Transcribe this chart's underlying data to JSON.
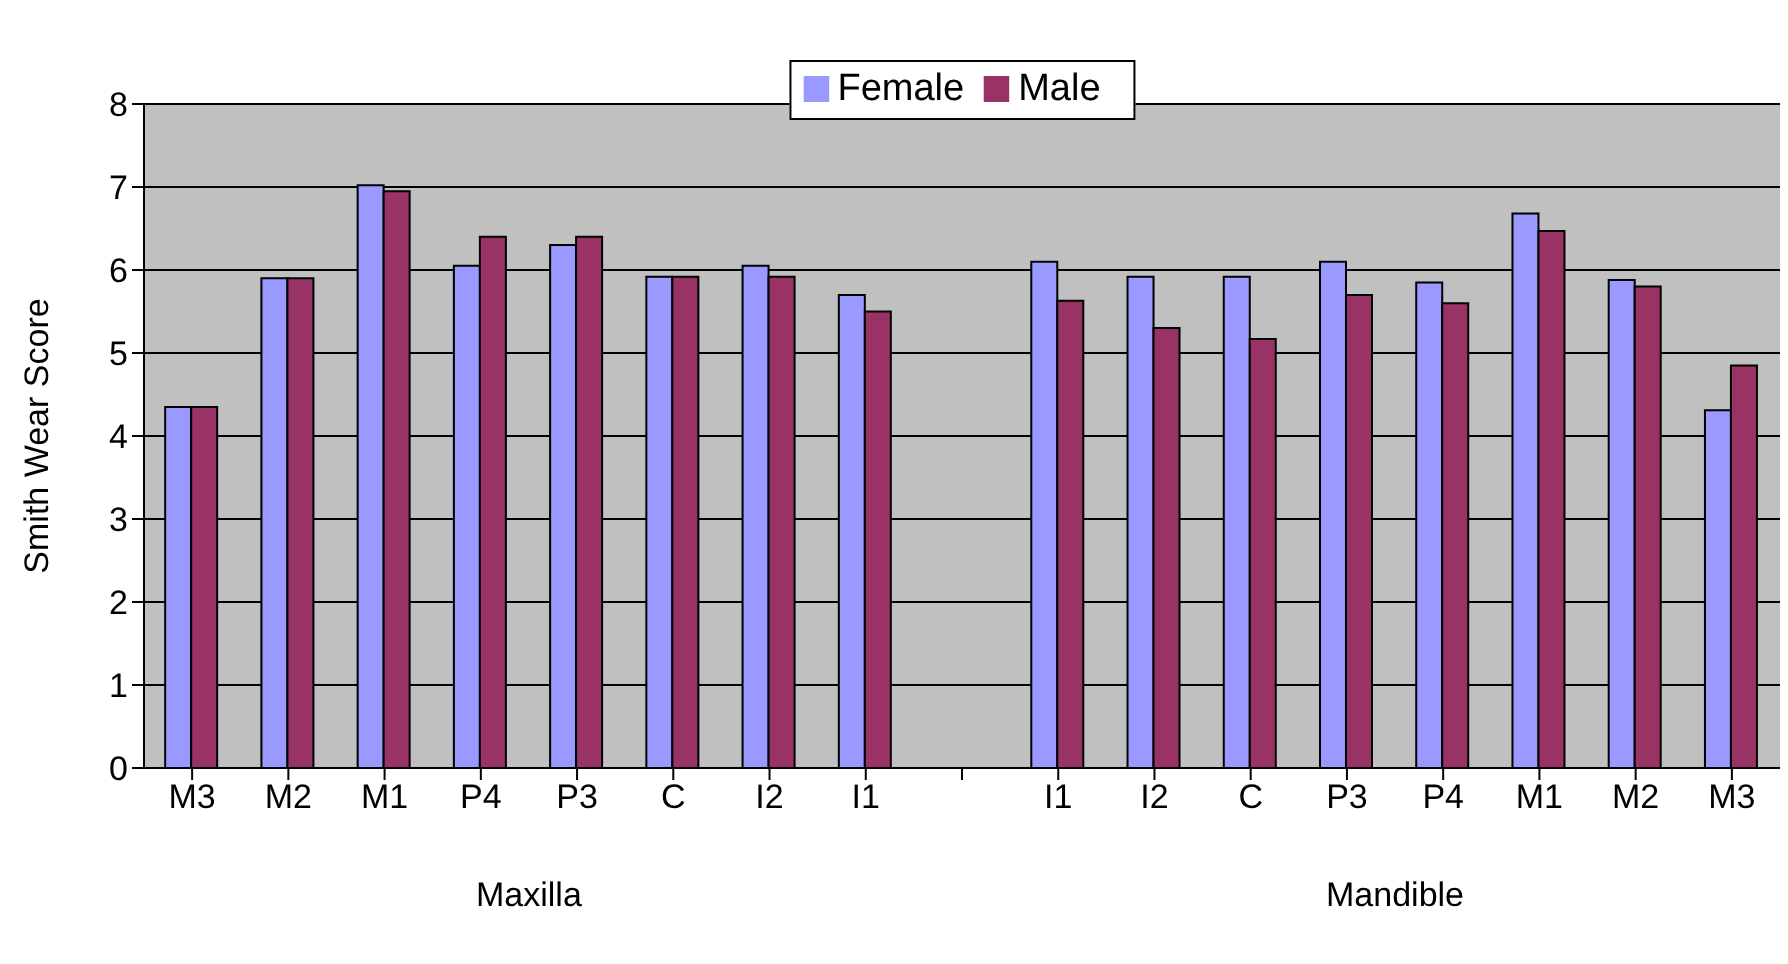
{
  "chart_data": {
    "type": "bar",
    "ylabel": "Smith Wear Score",
    "categories": [
      "M3",
      "M2",
      "M1",
      "P4",
      "P3",
      "C",
      "I2",
      "I1",
      null,
      "I1",
      "I2",
      "C",
      "P3",
      "P4",
      "M1",
      "M2",
      "M3"
    ],
    "series": [
      {
        "name": "Female",
        "color": "#9999ff",
        "values": [
          4.35,
          5.9,
          7.02,
          6.05,
          6.3,
          5.92,
          6.05,
          5.7,
          null,
          6.1,
          5.92,
          5.92,
          6.1,
          5.85,
          6.68,
          5.88,
          4.31
        ]
      },
      {
        "name": "Male",
        "color": "#993366",
        "values": [
          4.35,
          5.9,
          6.95,
          6.4,
          6.4,
          5.92,
          5.92,
          5.5,
          null,
          5.63,
          5.3,
          5.17,
          5.7,
          5.6,
          6.47,
          5.8,
          4.85
        ]
      }
    ],
    "ylim": [
      0,
      8
    ],
    "yticks": [
      0,
      1,
      2,
      3,
      4,
      5,
      6,
      7,
      8
    ],
    "grid": "y",
    "legend": "top",
    "annotations": [
      "Maxilla",
      "Mandible"
    ]
  }
}
